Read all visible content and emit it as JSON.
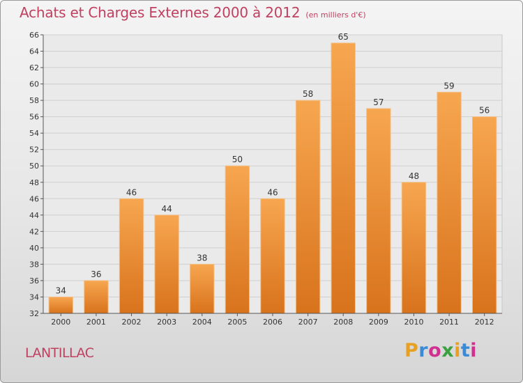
{
  "page": {
    "title": "Achats et Charges Externes 2000 à 2012",
    "subtitle": "(en milliers d'€)",
    "commune": "LANTILLAC",
    "logo_text": "Proxiti",
    "logo_colors": [
      "#e8a020",
      "#3a8ad8",
      "#d03090",
      "#3aa040",
      "#e8a020",
      "#3a8ad8",
      "#d03090"
    ]
  },
  "chart_data": {
    "type": "bar",
    "title": "Achats et Charges Externes 2000 à 2012",
    "subtitle": "(en milliers d'€)",
    "xlabel": "",
    "ylabel": "",
    "categories": [
      "2000",
      "2001",
      "2002",
      "2003",
      "2004",
      "2005",
      "2006",
      "2007",
      "2008",
      "2009",
      "2010",
      "2011",
      "2012"
    ],
    "values": [
      34,
      36,
      46,
      44,
      38,
      50,
      46,
      58,
      65,
      57,
      48,
      59,
      56
    ],
    "data_labels": [
      "34",
      "36",
      "46",
      "44",
      "38",
      "50",
      "46",
      "58",
      "65",
      "57",
      "48",
      "59",
      "56"
    ],
    "ylim": [
      32,
      66
    ],
    "yticks": [
      32,
      34,
      36,
      38,
      40,
      42,
      44,
      46,
      48,
      50,
      52,
      54,
      56,
      58,
      60,
      62,
      64,
      66
    ],
    "ytick_labels": [
      "32",
      "34",
      "36",
      "38",
      "40",
      "42",
      "44",
      "46",
      "48",
      "50",
      "52",
      "54",
      "56",
      "58",
      "60",
      "62",
      "64",
      "66"
    ],
    "grid": true,
    "legend": "none",
    "bar_color_top": "#f7a650",
    "bar_color_bottom": "#d8731c"
  }
}
